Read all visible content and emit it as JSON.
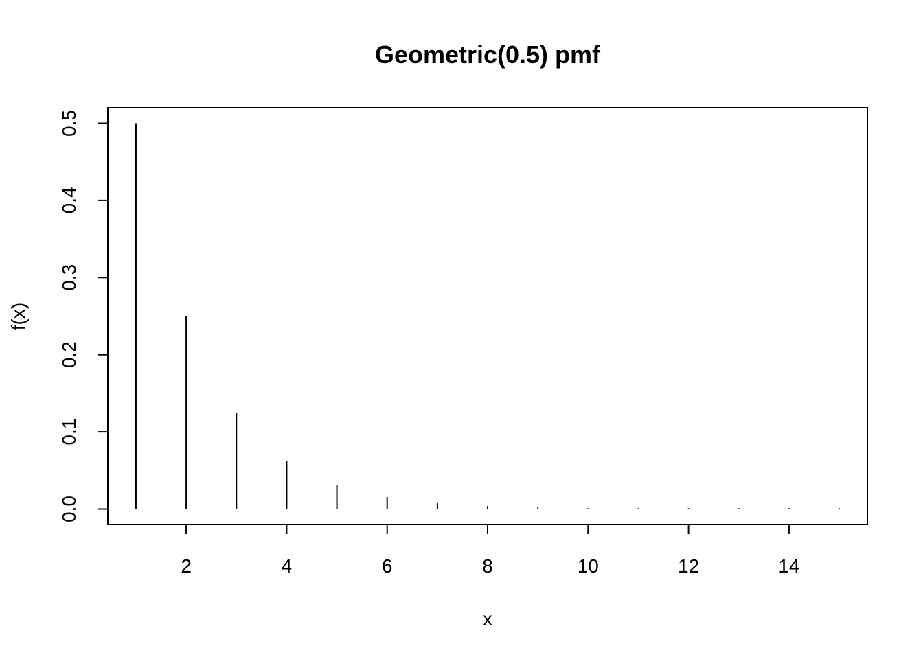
{
  "chart_data": {
    "type": "bar",
    "style": "vertical-line-spikes",
    "title": "Geometric(0.5) pmf",
    "xlabel": "x",
    "ylabel": "f(x)",
    "x": [
      1,
      2,
      3,
      4,
      5,
      6,
      7,
      8,
      9,
      10,
      11,
      12,
      13,
      14,
      15
    ],
    "values": [
      0.5,
      0.25,
      0.125,
      0.0625,
      0.03125,
      0.015625,
      0.0078125,
      0.00390625,
      0.001953125,
      0.0009765625,
      0.00048828125,
      0.000244140625,
      0.0001220703125,
      6.103515625e-05,
      3.0517578125e-05
    ],
    "xlim": [
      0.44,
      15.56
    ],
    "ylim": [
      -0.02,
      0.52
    ],
    "xticks": [
      2,
      4,
      6,
      8,
      10,
      12,
      14
    ],
    "xtick_labels": [
      "2",
      "4",
      "6",
      "8",
      "10",
      "12",
      "14"
    ],
    "yticks": [
      0.0,
      0.1,
      0.2,
      0.3,
      0.4,
      0.5
    ],
    "ytick_labels": [
      "0.0",
      "0.1",
      "0.2",
      "0.3",
      "0.4",
      "0.5"
    ],
    "grid": false,
    "legend": "none",
    "colors": {
      "spike": "#000000",
      "axis": "#000000",
      "background": "#ffffff"
    }
  }
}
